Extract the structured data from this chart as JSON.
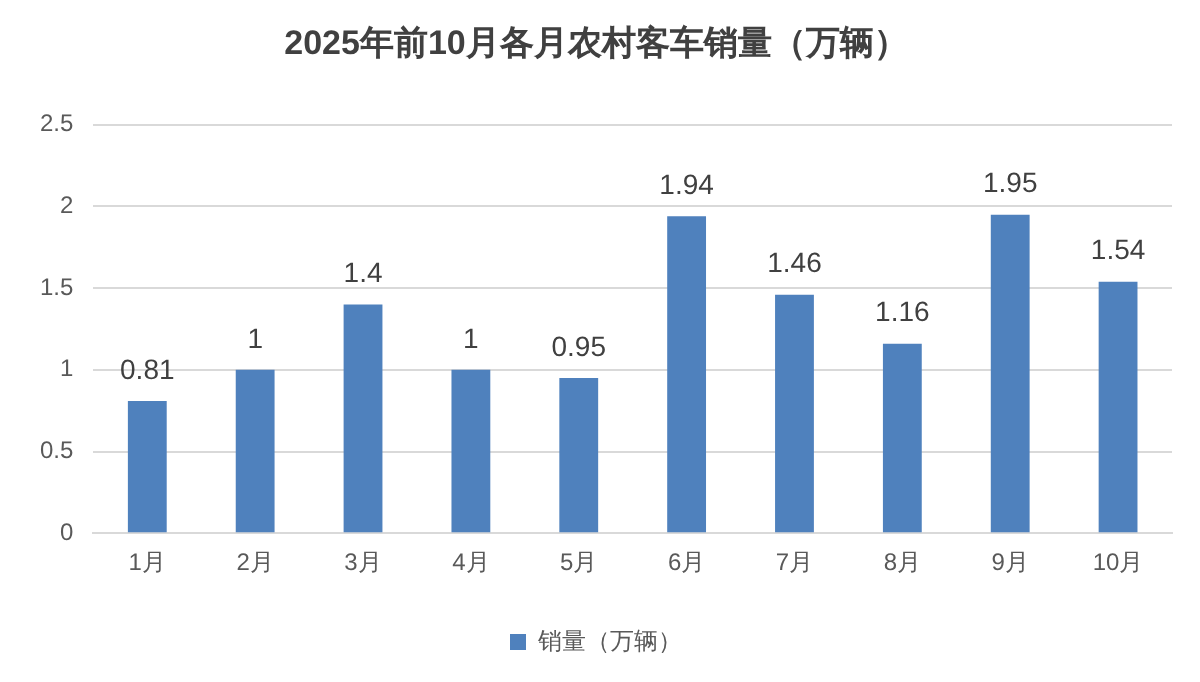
{
  "chart_data": {
    "type": "bar",
    "title": "2025年前10月各月农村客车销量（万辆）",
    "categories": [
      "1月",
      "2月",
      "3月",
      "4月",
      "5月",
      "6月",
      "7月",
      "8月",
      "9月",
      "10月"
    ],
    "series": [
      {
        "name": "销量（万辆）",
        "color": "#4f81bd",
        "values": [
          0.81,
          1,
          1.4,
          1,
          0.95,
          1.94,
          1.46,
          1.16,
          1.95,
          1.54
        ]
      }
    ],
    "ylim": [
      0,
      2.5
    ],
    "yticks": [
      0,
      0.5,
      1,
      1.5,
      2,
      2.5
    ],
    "grid": "y",
    "legend": "bottom",
    "data_labels": true
  }
}
